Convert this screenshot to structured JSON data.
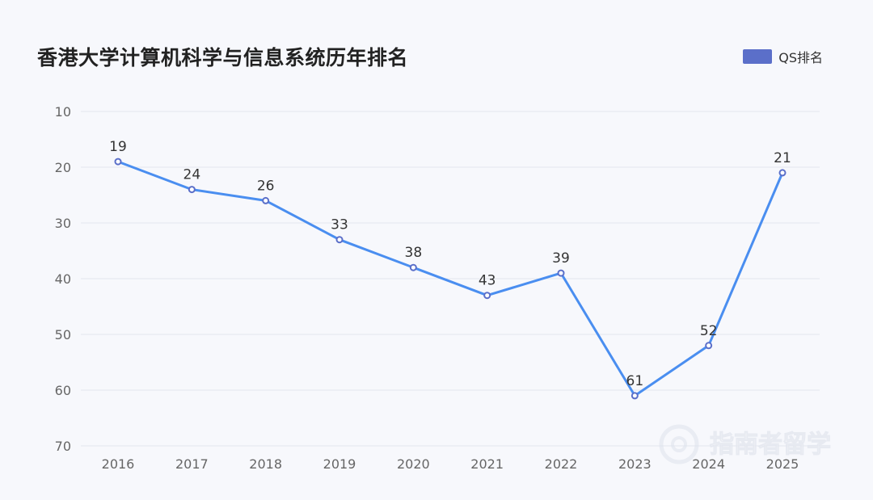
{
  "chart_data": {
    "type": "line",
    "title": "香港大学计算机科学与信息系统历年排名",
    "xlabel": "",
    "ylabel": "",
    "x": [
      "2016",
      "2017",
      "2018",
      "2019",
      "2020",
      "2021",
      "2022",
      "2023",
      "2024",
      "2025"
    ],
    "series": [
      {
        "name": "QS排名",
        "values": [
          19,
          24,
          26,
          33,
          38,
          43,
          39,
          61,
          52,
          21
        ]
      }
    ],
    "y_ticks": [
      10,
      20,
      30,
      40,
      50,
      60,
      70
    ],
    "ylim": [
      10,
      70
    ],
    "y_inverted": true,
    "grid": true,
    "legend_position": "top-right",
    "colors": {
      "line": "#4a8ef0",
      "marker": "#5b6fc9",
      "legend": "#5b6fc9"
    }
  },
  "watermark": {
    "text": "指南者留学"
  }
}
